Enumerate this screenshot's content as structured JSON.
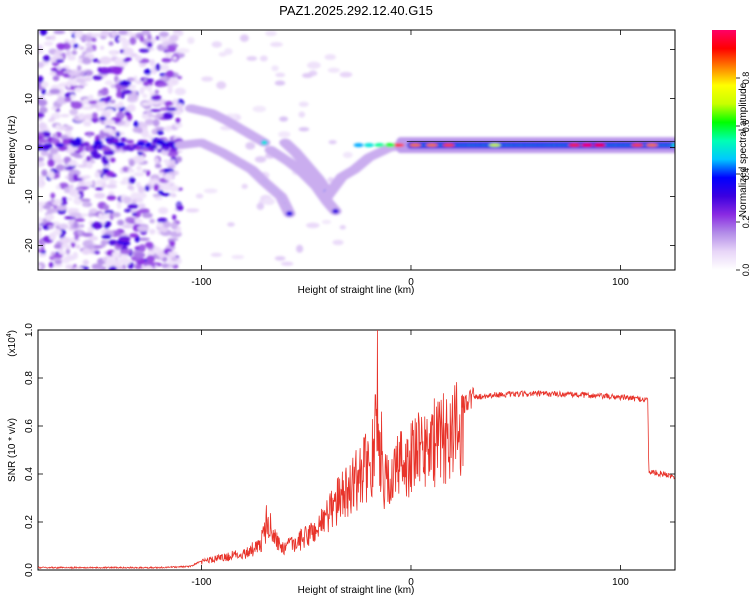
{
  "title": "PAZ1.2025.292.12.40.G15",
  "chart_data": [
    {
      "type": "heatmap",
      "name": "spectrogram",
      "xlabel": "Height of straight line (km)",
      "ylabel": "Frequency (Hz)",
      "xlim": [
        -178,
        126
      ],
      "ylim": [
        -25,
        24
      ],
      "xticks": [
        -100,
        0,
        100
      ],
      "yticks": [
        -20,
        -10,
        0,
        10,
        20
      ],
      "noise_region": [
        -178,
        -110
      ],
      "ridges": [
        {
          "name": "upper-branch",
          "points": [
            [
              -105,
              8
            ],
            [
              -95,
              7
            ],
            [
              -88,
              5.5
            ],
            [
              -78,
              3
            ],
            [
              -70,
              1
            ]
          ]
        },
        {
          "name": "main-descending",
          "points": [
            [
              -110,
              0.5
            ],
            [
              -100,
              1
            ],
            [
              -90,
              -1
            ],
            [
              -82,
              -3
            ],
            [
              -76,
              -4.5
            ],
            [
              -70,
              -7
            ],
            [
              -62,
              -10
            ],
            [
              -58,
              -13.5
            ]
          ]
        },
        {
          "name": "second-descending",
          "points": [
            [
              -67,
              -0.5
            ],
            [
              -58,
              -3
            ],
            [
              -52,
              -5
            ],
            [
              -45,
              -8
            ],
            [
              -40,
              -11
            ],
            [
              -36,
              -13
            ]
          ]
        },
        {
          "name": "third-descending",
          "points": [
            [
              -60,
              1
            ],
            [
              -55,
              -1
            ],
            [
              -49,
              -4
            ],
            [
              -44,
              -6.5
            ],
            [
              -40,
              -9
            ]
          ]
        },
        {
          "name": "rising",
          "points": [
            [
              -40,
              -10
            ],
            [
              -33,
              -6
            ],
            [
              -27,
              -4.5
            ],
            [
              -20,
              -2
            ],
            [
              -10,
              0
            ],
            [
              0,
              0.5
            ]
          ]
        },
        {
          "name": "flat",
          "points": [
            [
              0,
              0.5
            ],
            [
              126,
              0.5
            ]
          ]
        }
      ],
      "colorbar": {
        "label": "Normalized spectral amplitude",
        "range": [
          0,
          1
        ],
        "ticks": [
          0.0,
          0.2,
          0.4,
          0.6,
          0.8
        ],
        "tick_labels": [
          "0.0",
          "0.2",
          "0.4",
          "0.6",
          "0.8"
        ],
        "colors": [
          "#ffffff",
          "#e8d6f8",
          "#b38de8",
          "#8a2be2",
          "#3b00e0",
          "#0000ff",
          "#00c8ff",
          "#00ffb4",
          "#00ff00",
          "#c8ff00",
          "#ffff00",
          "#ff8000",
          "#ff0000",
          "#ff0066"
        ]
      }
    },
    {
      "type": "line",
      "name": "snr",
      "xlabel": "Height of straight line (km)",
      "ylabel": "SNR (10 * v/v)",
      "multiplier_label": "(x10",
      "multiplier_exp": "4",
      "xlim": [
        -178,
        126
      ],
      "ylim": [
        0,
        1.0
      ],
      "xticks": [
        -100,
        0,
        100
      ],
      "yticks": [
        0.0,
        0.2,
        0.4,
        0.6,
        0.8,
        1.0
      ],
      "ytick_labels": [
        "0.0",
        "0.2",
        "0.4",
        "0.6",
        "0.8",
        "1.0"
      ],
      "color": "#e8332a",
      "envelope": [
        [
          -178,
          0.01
        ],
        [
          -150,
          0.01
        ],
        [
          -120,
          0.01
        ],
        [
          -105,
          0.015
        ],
        [
          -100,
          0.04
        ],
        [
          -90,
          0.06
        ],
        [
          -80,
          0.08
        ],
        [
          -72,
          0.12
        ],
        [
          -68,
          0.24
        ],
        [
          -62,
          0.1
        ],
        [
          -55,
          0.13
        ],
        [
          -45,
          0.2
        ],
        [
          -38,
          0.3
        ],
        [
          -30,
          0.4
        ],
        [
          -25,
          0.45
        ],
        [
          -20,
          0.52
        ],
        [
          -16,
          0.6
        ],
        [
          -12,
          0.42
        ],
        [
          -5,
          0.52
        ],
        [
          0,
          0.55
        ],
        [
          5,
          0.58
        ],
        [
          10,
          0.62
        ],
        [
          15,
          0.64
        ],
        [
          20,
          0.68
        ],
        [
          25,
          0.7
        ],
        [
          30,
          0.72
        ],
        [
          40,
          0.73
        ],
        [
          60,
          0.735
        ],
        [
          80,
          0.73
        ],
        [
          100,
          0.72
        ],
        [
          113,
          0.71
        ],
        [
          113.5,
          0.41
        ],
        [
          120,
          0.4
        ],
        [
          126,
          0.39
        ]
      ],
      "spikes": [
        [
          -69,
          0.27
        ],
        [
          -38,
          0.33
        ],
        [
          -27,
          0.43
        ],
        [
          -22,
          0.55
        ],
        [
          -17,
          0.73
        ],
        [
          -16,
          1.0
        ],
        [
          -14,
          0.66
        ],
        [
          -8,
          0.5
        ],
        [
          10,
          0.65
        ]
      ]
    }
  ]
}
